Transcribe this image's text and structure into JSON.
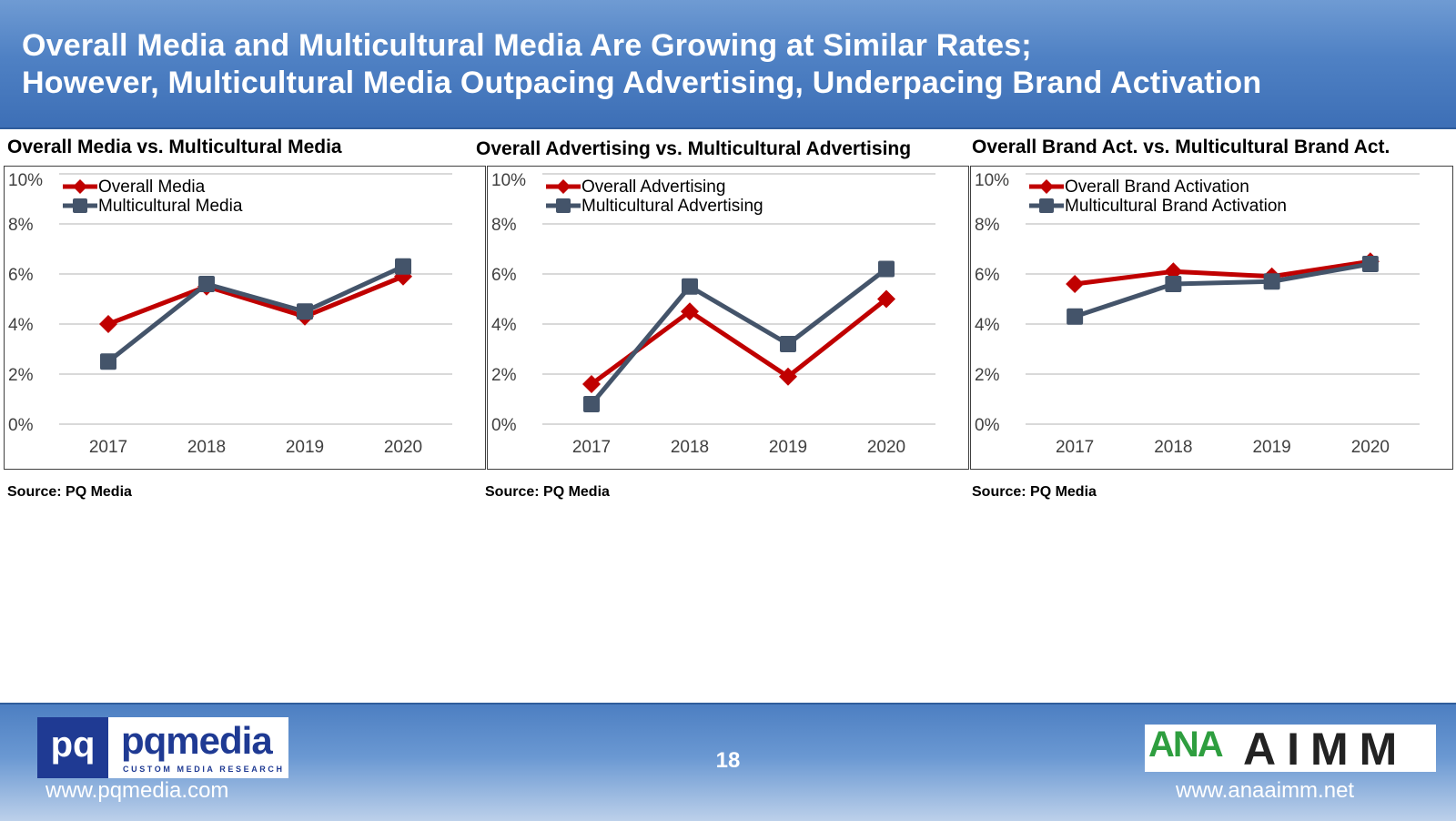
{
  "header": {
    "title_line1": "Overall Media and Multicultural Media Are Growing at Similar Rates;",
    "title_line2": "However, Multicultural Media Outpacing Advertising, Underpacing Brand Activation"
  },
  "source_label": "Source: PQ Media",
  "colors": {
    "overall": "#c00000",
    "multicultural": "#44546a",
    "grid": "#d9d9d9"
  },
  "chart_data": [
    {
      "type": "line",
      "title": "Overall Media vs. Multicultural Media",
      "categories": [
        "2017",
        "2018",
        "2019",
        "2020"
      ],
      "ylim": [
        0,
        10
      ],
      "yticks": [
        "0%",
        "2%",
        "4%",
        "6%",
        "8%",
        "10%"
      ],
      "legend": "top-left",
      "series": [
        {
          "name": "Overall Media",
          "values": [
            4.0,
            5.5,
            4.3,
            5.9
          ]
        },
        {
          "name": "Multicultural Media",
          "values": [
            2.5,
            5.6,
            4.5,
            6.3
          ]
        }
      ]
    },
    {
      "type": "line",
      "title": "Overall Advertising vs. Multicultural Advertising",
      "categories": [
        "2017",
        "2018",
        "2019",
        "2020"
      ],
      "ylim": [
        0,
        10
      ],
      "yticks": [
        "0%",
        "2%",
        "4%",
        "6%",
        "8%",
        "10%"
      ],
      "legend": "top-left",
      "series": [
        {
          "name": "Overall Advertising",
          "values": [
            1.6,
            4.5,
            1.9,
            5.0
          ]
        },
        {
          "name": "Multicultural Advertising",
          "values": [
            0.8,
            5.5,
            3.2,
            6.2
          ]
        }
      ]
    },
    {
      "type": "line",
      "title": "Overall Brand Act. vs. Multicultural Brand Act.",
      "categories": [
        "2017",
        "2018",
        "2019",
        "2020"
      ],
      "ylim": [
        0,
        10
      ],
      "yticks": [
        "0%",
        "2%",
        "4%",
        "6%",
        "8%",
        "10%"
      ],
      "legend": "top-left",
      "series": [
        {
          "name": "Overall Brand Activation",
          "values": [
            5.6,
            6.1,
            5.9,
            6.5
          ]
        },
        {
          "name": "Multicultural Brand Activation",
          "values": [
            4.3,
            5.6,
            5.7,
            6.4
          ]
        }
      ]
    }
  ],
  "footer": {
    "page_number": "18",
    "pq_logo_mark": "pq",
    "pq_logo_word": "pqmedia",
    "pq_logo_tagline": "CUSTOM MEDIA RESEARCH",
    "pq_url": "www.pqmedia.com",
    "ana_logo_word": "ANA",
    "aimm_logo_word": "AIMM",
    "ana_url": "www.anaaimm.net"
  }
}
